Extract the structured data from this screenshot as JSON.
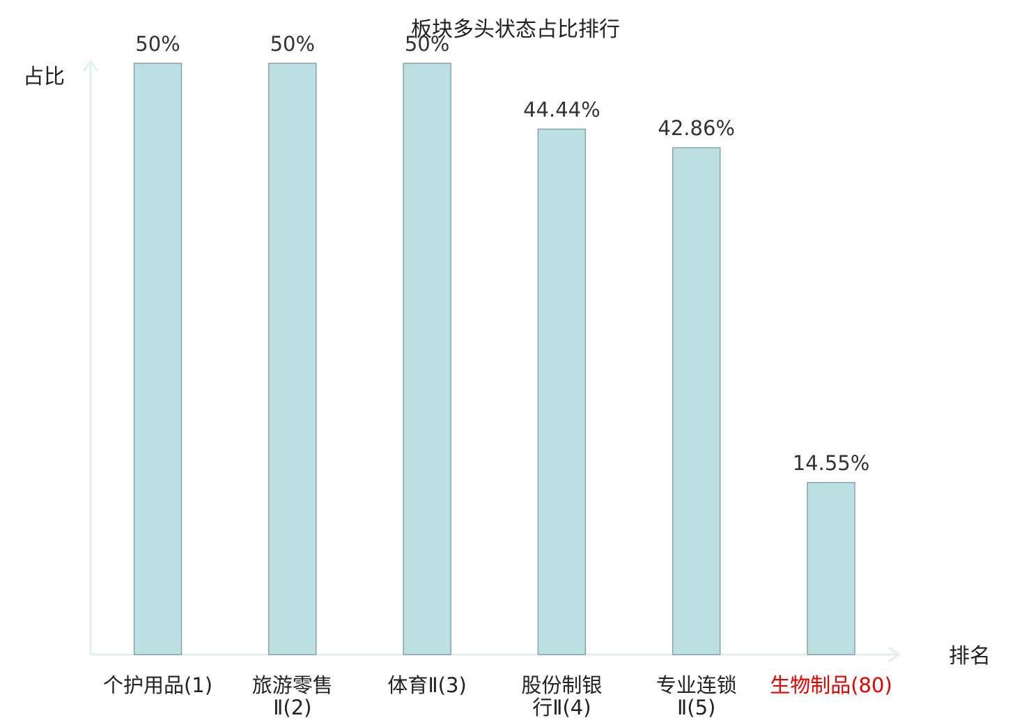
{
  "chart_data": {
    "type": "bar",
    "title": "板块多头状态占比排行",
    "ylabel": "占比",
    "xlabel": "排名",
    "categories": [
      [
        "个护用品(1)"
      ],
      [
        "旅游零售",
        "Ⅱ(2)"
      ],
      [
        "体育Ⅱ(3)"
      ],
      [
        "股份制银",
        "行Ⅱ(4)"
      ],
      [
        "专业连锁",
        "Ⅱ(5)"
      ],
      [
        "生物制品(80)"
      ]
    ],
    "values": [
      50,
      50,
      50,
      44.44,
      42.86,
      14.55
    ],
    "value_labels": [
      "50%",
      "50%",
      "50%",
      "44.44%",
      "42.86%",
      "14.55%"
    ],
    "highlight_index": 5,
    "ylim": [
      0,
      50
    ],
    "grid": false,
    "colors": {
      "bar_fill": "#bde0e3",
      "bar_stroke": "#85a4a8",
      "axis": "#e0f2ef",
      "text": "#333333",
      "title": "#222222",
      "highlight": "#e00000"
    }
  }
}
